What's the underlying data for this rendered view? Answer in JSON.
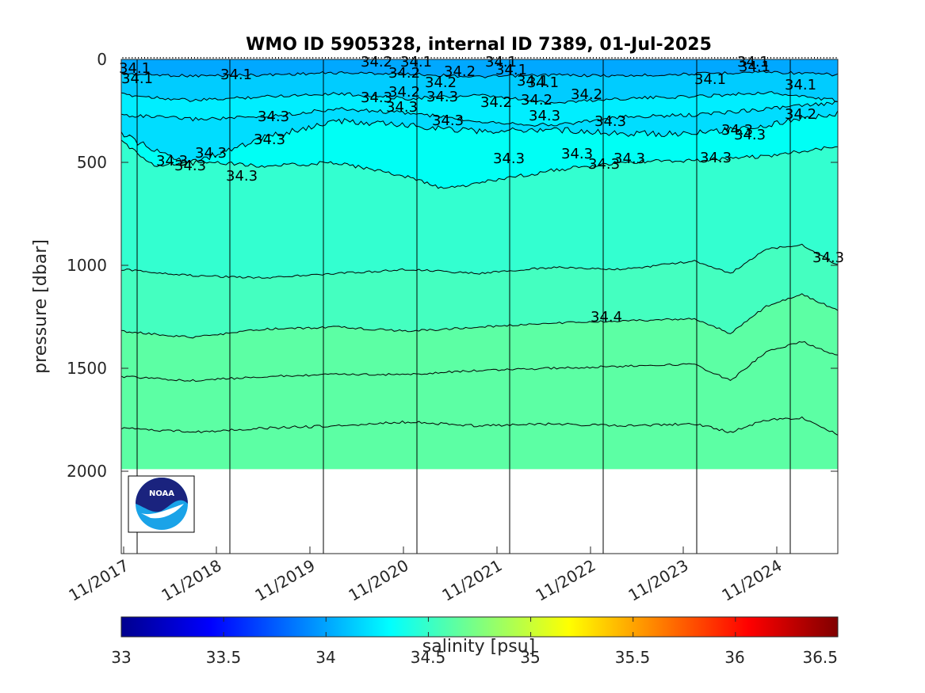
{
  "chart_data": {
    "type": "heatmap",
    "title": "WMO ID 5905328, internal ID 7389, 01-Jul-2025",
    "ylabel": "pressure [dbar]",
    "colorbar_label": "salinity [psu]",
    "x_tick_labels": [
      "11/2017",
      "11/2018",
      "11/2019",
      "11/2020",
      "11/2021",
      "11/2022",
      "11/2023",
      "11/2024"
    ],
    "y_ticks": [
      0,
      500,
      1000,
      1500,
      2000
    ],
    "y_tick_labels": [
      "0",
      "500",
      "1000",
      "1500",
      "2000"
    ],
    "ylim": [
      0,
      2400
    ],
    "y_reversed": true,
    "data_max_pressure": 1990,
    "colorbar_ticks": [
      33,
      33.5,
      34,
      34.5,
      35,
      35.5,
      36,
      36.5
    ],
    "colorbar_tick_labels": [
      "33",
      "33.5",
      "34",
      "34.5",
      "35",
      "35.5",
      "36",
      "36.5"
    ],
    "colorbar_range": [
      33,
      36.5
    ],
    "colormap": "jet",
    "salinity_layers": [
      {
        "from_psu": 34.0,
        "to_psu": 34.1,
        "color": "#00a8ff"
      },
      {
        "from_psu": 34.1,
        "to_psu": 34.2,
        "color": "#00ccff"
      },
      {
        "from_psu": 34.2,
        "to_psu": 34.3,
        "color": "#00eeff"
      },
      {
        "from_psu": 34.3,
        "to_psu": 34.3,
        "color": "#00ddff"
      },
      {
        "from_psu": 34.3,
        "to_psu": 34.4,
        "color": "#00fff5"
      },
      {
        "from_psu": 34.4,
        "to_psu": 34.5,
        "color": "#33ffd0"
      },
      {
        "from_psu": 34.5,
        "to_psu": 34.6,
        "color": "#44ffc0"
      },
      {
        "from_psu": 34.6,
        "to_psu": 34.7,
        "color": "#5cffa4"
      }
    ],
    "contour_lines": [
      {
        "level": 34.1,
        "pressure": [
          [
            0,
            70
          ],
          [
            0.1,
            80
          ],
          [
            0.2,
            75
          ],
          [
            0.3,
            65
          ],
          [
            0.4,
            70
          ],
          [
            0.5,
            85
          ],
          [
            0.6,
            75
          ],
          [
            0.7,
            80
          ],
          [
            0.8,
            70
          ],
          [
            0.9,
            60
          ],
          [
            1.0,
            75
          ]
        ]
      },
      {
        "level": 34.1,
        "pressure": [
          [
            0,
            170
          ],
          [
            0.1,
            200
          ],
          [
            0.2,
            180
          ],
          [
            0.3,
            165
          ],
          [
            0.4,
            190
          ],
          [
            0.5,
            175
          ],
          [
            0.6,
            210
          ],
          [
            0.7,
            190
          ],
          [
            0.8,
            180
          ],
          [
            0.9,
            160
          ],
          [
            1.0,
            200
          ]
        ]
      },
      {
        "level": 34.2,
        "pressure": [
          [
            0,
            270
          ],
          [
            0.1,
            290
          ],
          [
            0.2,
            280
          ],
          [
            0.3,
            240
          ],
          [
            0.4,
            260
          ],
          [
            0.5,
            300
          ],
          [
            0.6,
            320
          ],
          [
            0.7,
            280
          ],
          [
            0.8,
            270
          ],
          [
            0.9,
            240
          ],
          [
            1.0,
            210
          ]
        ]
      },
      {
        "level": 34.3,
        "pressure": [
          [
            0,
            360
          ],
          [
            0.05,
            450
          ],
          [
            0.1,
            500
          ],
          [
            0.2,
            380
          ],
          [
            0.3,
            300
          ],
          [
            0.4,
            320
          ],
          [
            0.5,
            350
          ],
          [
            0.6,
            340
          ],
          [
            0.7,
            360
          ],
          [
            0.8,
            360
          ],
          [
            0.9,
            320
          ],
          [
            1.0,
            260
          ]
        ]
      },
      {
        "level": 34.3,
        "pressure": [
          [
            0,
            400
          ],
          [
            0.05,
            520
          ],
          [
            0.1,
            490
          ],
          [
            0.2,
            520
          ],
          [
            0.3,
            500
          ],
          [
            0.4,
            570
          ],
          [
            0.45,
            630
          ],
          [
            0.5,
            600
          ],
          [
            0.6,
            540
          ],
          [
            0.7,
            500
          ],
          [
            0.8,
            490
          ],
          [
            0.9,
            470
          ],
          [
            1.0,
            420
          ]
        ]
      },
      {
        "level": 34.3,
        "pressure": [
          [
            0,
            1020
          ],
          [
            0.1,
            1050
          ],
          [
            0.2,
            1060
          ],
          [
            0.3,
            1040
          ],
          [
            0.4,
            1020
          ],
          [
            0.5,
            1040
          ],
          [
            0.6,
            1010
          ],
          [
            0.7,
            1020
          ],
          [
            0.8,
            980
          ],
          [
            0.85,
            1040
          ],
          [
            0.9,
            920
          ],
          [
            0.95,
            900
          ],
          [
            1.0,
            1000
          ]
        ]
      },
      {
        "level": 34.4,
        "pressure": [
          [
            0,
            1320
          ],
          [
            0.1,
            1350
          ],
          [
            0.2,
            1310
          ],
          [
            0.3,
            1300
          ],
          [
            0.4,
            1320
          ],
          [
            0.5,
            1300
          ],
          [
            0.6,
            1280
          ],
          [
            0.7,
            1270
          ],
          [
            0.8,
            1260
          ],
          [
            0.85,
            1330
          ],
          [
            0.9,
            1200
          ],
          [
            0.95,
            1140
          ],
          [
            1.0,
            1220
          ]
        ]
      },
      {
        "level": 34.5,
        "pressure": [
          [
            0,
            1540
          ],
          [
            0.1,
            1560
          ],
          [
            0.2,
            1540
          ],
          [
            0.3,
            1530
          ],
          [
            0.4,
            1530
          ],
          [
            0.5,
            1510
          ],
          [
            0.6,
            1500
          ],
          [
            0.7,
            1490
          ],
          [
            0.8,
            1480
          ],
          [
            0.85,
            1560
          ],
          [
            0.9,
            1420
          ],
          [
            0.95,
            1370
          ],
          [
            1.0,
            1440
          ]
        ]
      },
      {
        "level": 34.6,
        "pressure": [
          [
            0,
            1790
          ],
          [
            0.1,
            1810
          ],
          [
            0.2,
            1790
          ],
          [
            0.3,
            1780
          ],
          [
            0.4,
            1760
          ],
          [
            0.5,
            1780
          ],
          [
            0.6,
            1770
          ],
          [
            0.7,
            1780
          ],
          [
            0.8,
            1770
          ],
          [
            0.85,
            1810
          ],
          [
            0.9,
            1750
          ],
          [
            0.95,
            1740
          ],
          [
            1.0,
            1820
          ]
        ]
      }
    ],
    "contour_labels": [
      "34.1",
      "34.1",
      "34.1",
      "34.1",
      "34.1",
      "34.1",
      "34.1",
      "34.1",
      "34.1",
      "34.1",
      "34.1",
      "34.1",
      "34.2",
      "34.2",
      "34.2",
      "34.2",
      "34.2",
      "34.2",
      "34.2",
      "34.2",
      "34.2",
      "34.3",
      "34.3",
      "34.3",
      "34.3",
      "34.3",
      "34.3",
      "34.3",
      "34.3",
      "34.3",
      "34.3",
      "34.3",
      "34.3",
      "34.3",
      "34.3",
      "34.3",
      "34.3",
      "34.3",
      "34.3",
      "34.3",
      "34.3",
      "34.4"
    ],
    "logo": "noaa-logo",
    "background": "#ffffff"
  }
}
